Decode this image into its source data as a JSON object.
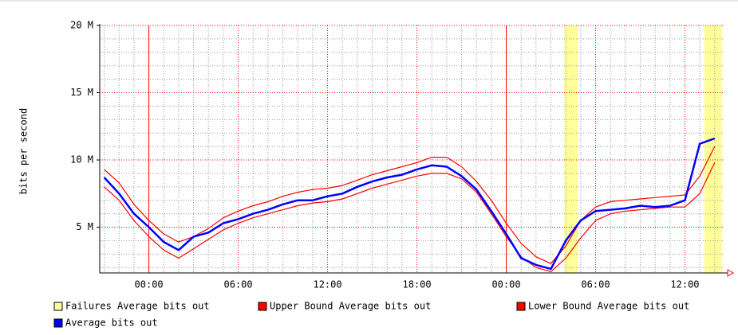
{
  "chart_data": {
    "type": "line",
    "ylabel": "bits per second",
    "x": [
      -3,
      -2,
      -1,
      0,
      1,
      2,
      3,
      4,
      5,
      6,
      7,
      8,
      9,
      10,
      11,
      12,
      13,
      14,
      15,
      16,
      17,
      18,
      19,
      20,
      21,
      22,
      23,
      24,
      25,
      26,
      27,
      28,
      29,
      30,
      31,
      32,
      33,
      34,
      35,
      36,
      37,
      38
    ],
    "series": [
      {
        "name": "Upper Bound Average bits out",
        "color": "#ff0000",
        "values": [
          9300000.0,
          8300000.0,
          6700000.0,
          5500000.0,
          4500000.0,
          3900000.0,
          4300000.0,
          4900000.0,
          5700000.0,
          6200000.0,
          6600000.0,
          6900000.0,
          7300000.0,
          7600000.0,
          7800000.0,
          7900000.0,
          8100000.0,
          8500000.0,
          8900000.0,
          9200000.0,
          9500000.0,
          9800000.0,
          10200000.0,
          10200000.0,
          9500000.0,
          8400000.0,
          7000000.0,
          5300000.0,
          3800000.0,
          2800000.0,
          2300000.0,
          3600000.0,
          5500000.0,
          6500000.0,
          6900000.0,
          7000000.0,
          7100000.0,
          7200000.0,
          7300000.0,
          7400000.0,
          8800000.0,
          11000000.0
        ]
      },
      {
        "name": "Lower Bound Average bits out",
        "color": "#ff0000",
        "values": [
          8000000.0,
          7000000.0,
          5500000.0,
          4300000.0,
          3300000.0,
          2700000.0,
          3400000.0,
          4100000.0,
          4800000.0,
          5300000.0,
          5700000.0,
          6000000.0,
          6300000.0,
          6600000.0,
          6800000.0,
          6900000.0,
          7100000.0,
          7500000.0,
          7900000.0,
          8200000.0,
          8500000.0,
          8800000.0,
          9000000.0,
          9000000.0,
          8600000.0,
          7600000.0,
          6000000.0,
          4300000.0,
          2800000.0,
          2000000.0,
          1700000.0,
          2700000.0,
          4200000.0,
          5500000.0,
          6000000.0,
          6200000.0,
          6300000.0,
          6400000.0,
          6500000.0,
          6500000.0,
          7500000.0,
          9800000.0
        ]
      },
      {
        "name": "Average bits out",
        "color": "#0000ff",
        "values": [
          8700000.0,
          7500000.0,
          6000000.0,
          5000000.0,
          3900000.0,
          3300000.0,
          4300000.0,
          4600000.0,
          5300000.0,
          5600000.0,
          6000000.0,
          6300000.0,
          6700000.0,
          7000000.0,
          7000000.0,
          7300000.0,
          7500000.0,
          8000000.0,
          8400000.0,
          8700000.0,
          8900000.0,
          9300000.0,
          9600000.0,
          9500000.0,
          8800000.0,
          7800000.0,
          6200000.0,
          4500000.0,
          2700000.0,
          2200000.0,
          1900000.0,
          4000000.0,
          5500000.0,
          6200000.0,
          6300000.0,
          6400000.0,
          6600000.0,
          6500000.0,
          6600000.0,
          7000000.0,
          11200000.0,
          11600000.0
        ]
      }
    ],
    "failures": {
      "name": "Failures Average bits out",
      "color": "#ffff99",
      "ranges": [
        [
          27.9,
          28.8
        ],
        [
          37.3,
          38.5
        ]
      ]
    },
    "xlim": [
      -3.3,
      38.6
    ],
    "xticks": [
      {
        "value": 0,
        "label": "00:00"
      },
      {
        "value": 6,
        "label": "06:00"
      },
      {
        "value": 12,
        "label": "12:00"
      },
      {
        "value": 18,
        "label": "18:00"
      },
      {
        "value": 24,
        "label": "00:00"
      },
      {
        "value": 30,
        "label": "06:00"
      },
      {
        "value": 36,
        "label": "12:00"
      }
    ],
    "xminorticks": [
      -3,
      -2,
      -1,
      1,
      2,
      3,
      4,
      5,
      7,
      8,
      9,
      10,
      11,
      13,
      14,
      15,
      16,
      17,
      19,
      20,
      21,
      22,
      23,
      25,
      26,
      27,
      28,
      29,
      31,
      32,
      33,
      34,
      35,
      37,
      38
    ],
    "ylim": [
      1600000.0,
      20000000.0
    ],
    "yticks": [
      {
        "value": 5000000.0,
        "label": "5 M"
      },
      {
        "value": 10000000.0,
        "label": "10 M"
      },
      {
        "value": 15000000.0,
        "label": "15 M"
      },
      {
        "value": 20000000.0,
        "label": "20 M"
      }
    ],
    "yminorticks": [
      2000000.0,
      3000000.0,
      4000000.0,
      6000000.0,
      7000000.0,
      8000000.0,
      9000000.0,
      11000000.0,
      12000000.0,
      13000000.0,
      14000000.0,
      16000000.0,
      17000000.0,
      18000000.0,
      19000000.0
    ],
    "grid": true
  }
}
